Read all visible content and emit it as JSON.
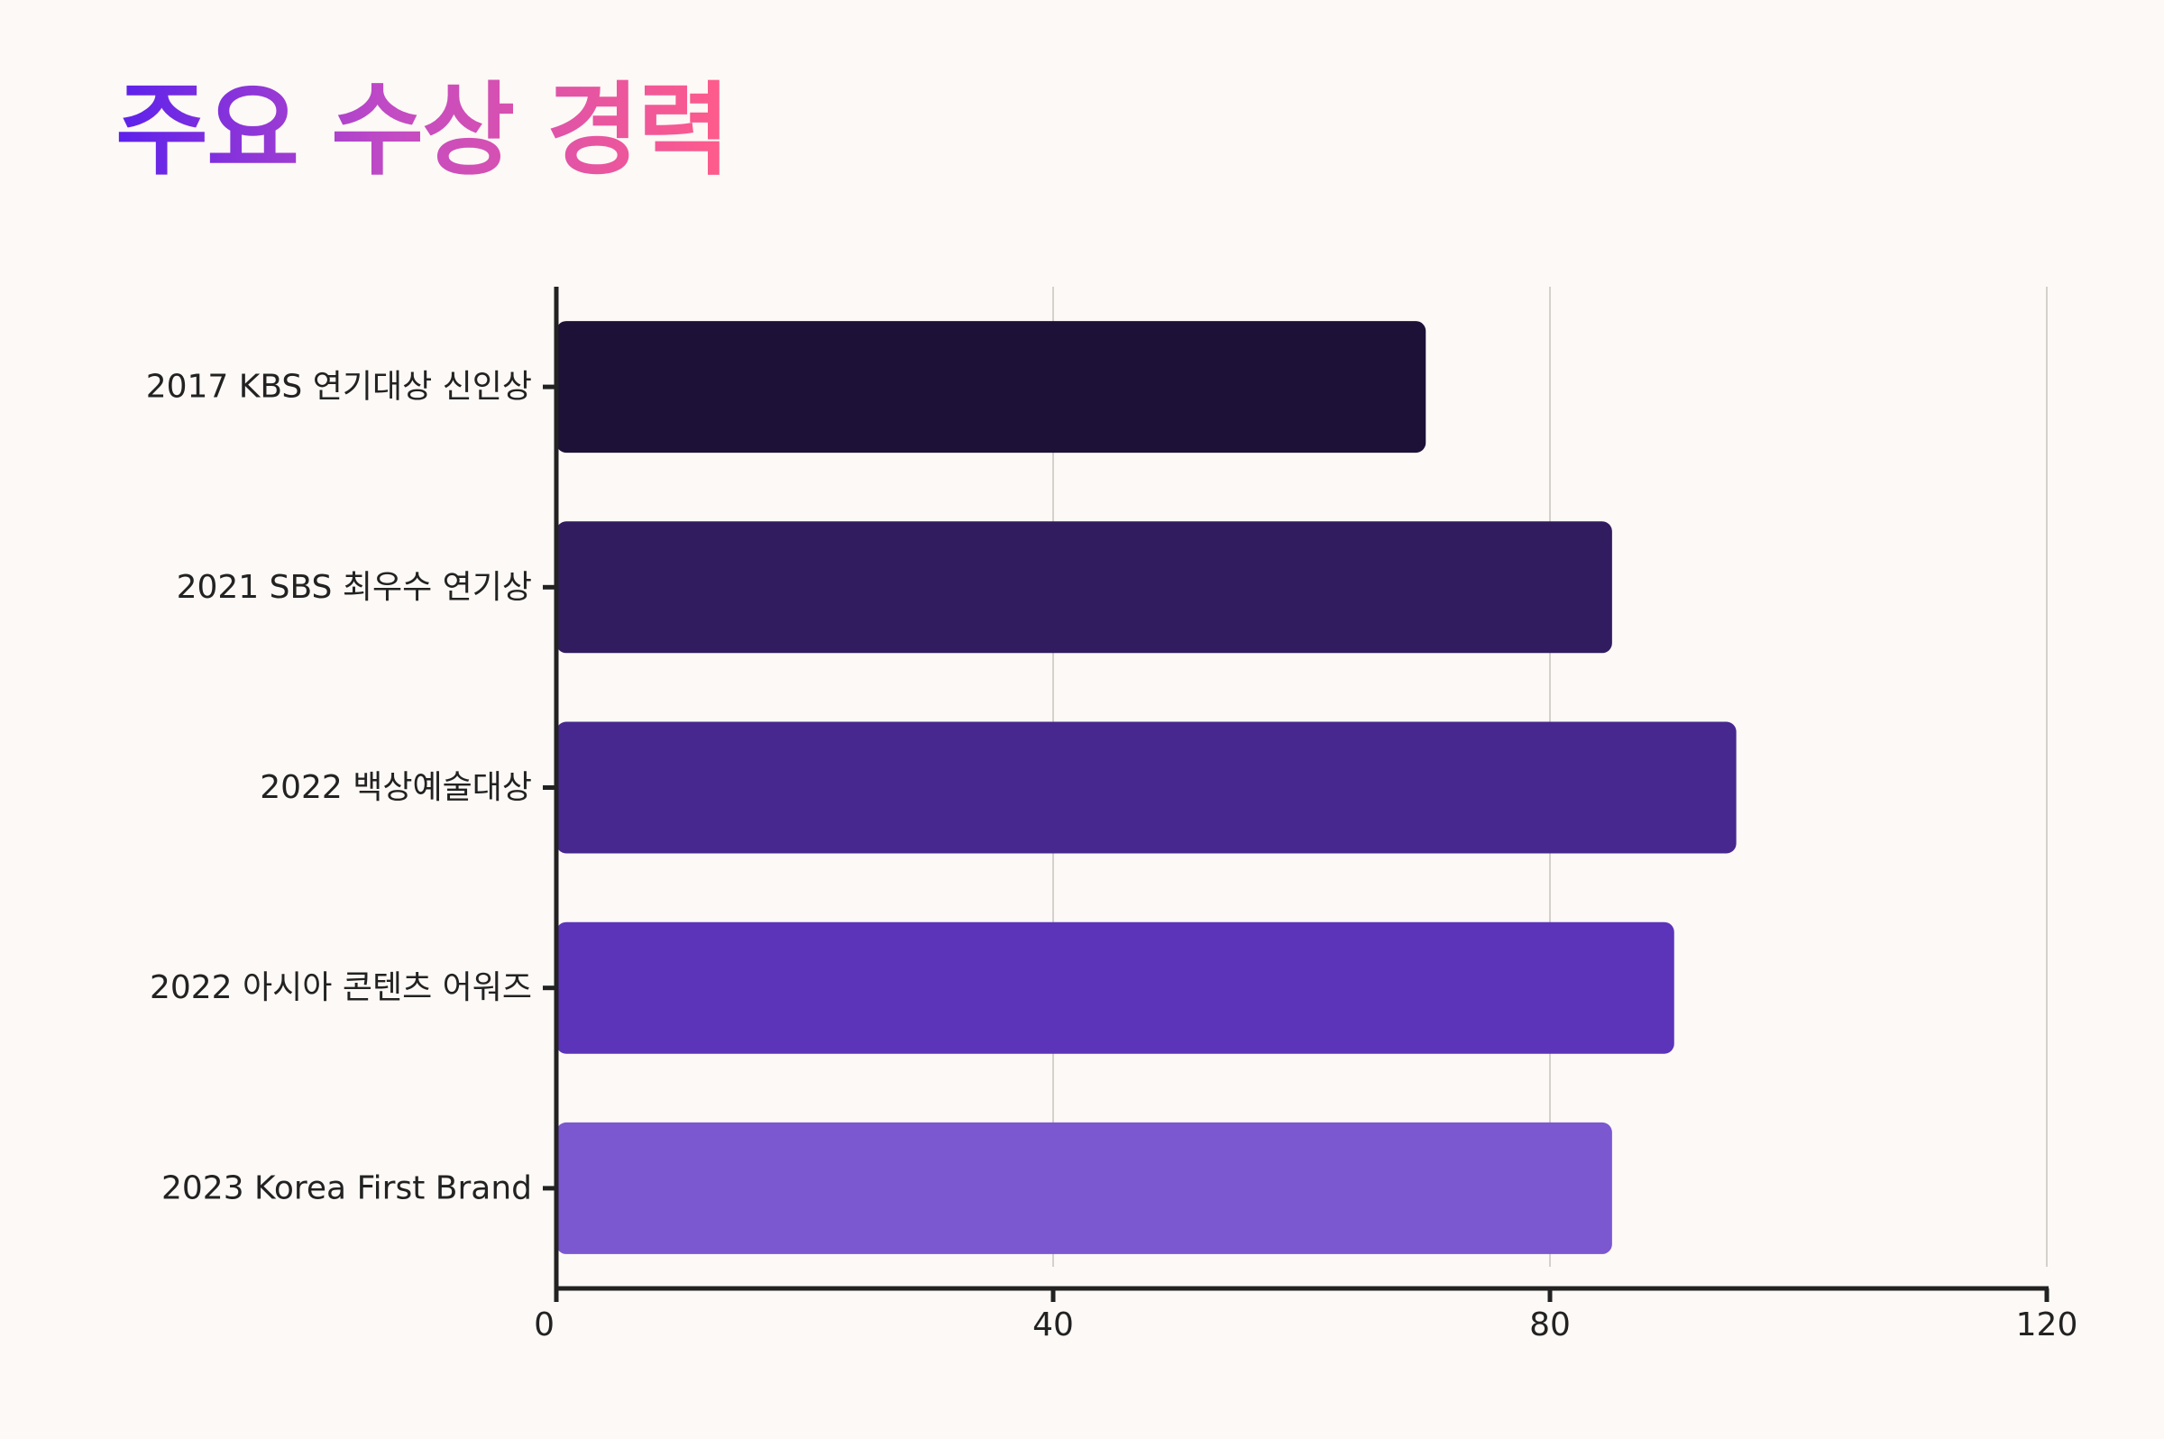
{
  "title": "주요 수상 경력",
  "chart_data": {
    "type": "bar",
    "orientation": "horizontal",
    "title": "주요 수상 경력",
    "categories": [
      "2017 KBS 연기대상 신인상",
      "2021 SBS 최우수 연기상",
      "2022 백상예술대상",
      "2022 아시아 콘텐츠 어워즈",
      "2023 Korea First Brand"
    ],
    "values": [
      70,
      85,
      95,
      90,
      85
    ],
    "colors": [
      "#1d1138",
      "#311c60",
      "#46288e",
      "#5b34ba",
      "#7b57d0"
    ],
    "xlim": [
      0,
      120
    ],
    "xticks": [
      0,
      40,
      80,
      120
    ],
    "grid": "vertical",
    "xlabel": "",
    "ylabel": ""
  }
}
